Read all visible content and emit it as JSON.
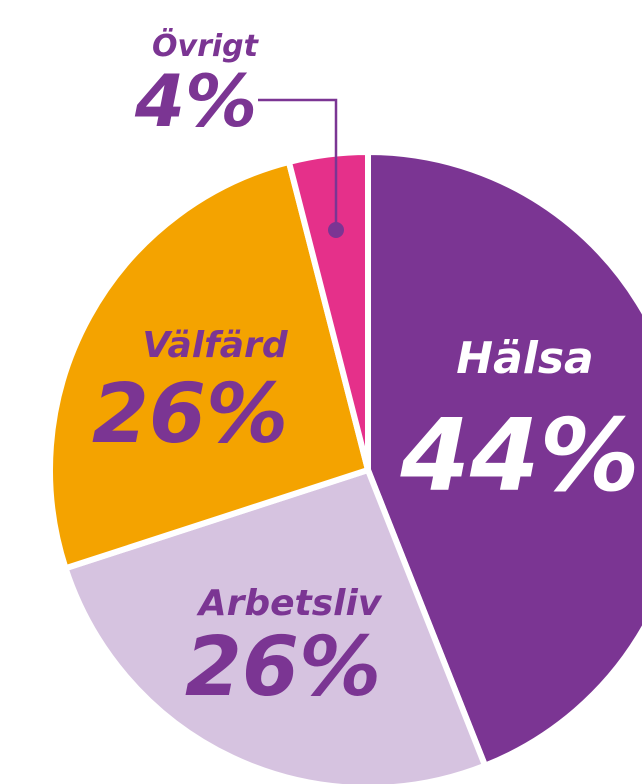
{
  "chart_data": {
    "type": "pie",
    "categories": [
      "Hälsa",
      "Arbetsliv",
      "Välfärd",
      "Övrigt"
    ],
    "values": [
      44,
      26,
      26,
      4
    ],
    "value_labels": [
      "44%",
      "26%",
      "26%",
      "4%"
    ],
    "colors": [
      "#7b3593",
      "#d6c3e0",
      "#f4a300",
      "#e5308a"
    ]
  }
}
